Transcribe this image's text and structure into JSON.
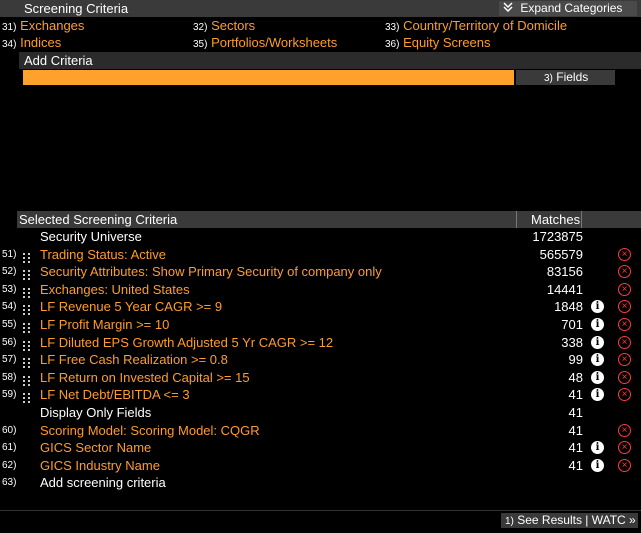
{
  "header": {
    "title": "Screening Criteria",
    "expand_label": "Expand Categories"
  },
  "categories": [
    {
      "num": "31)",
      "label": "Exchanges"
    },
    {
      "num": "32)",
      "label": "Sectors"
    },
    {
      "num": "33)",
      "label": "Country/Territory of Domicile"
    },
    {
      "num": "34)",
      "label": "Indices"
    },
    {
      "num": "35)",
      "label": "Portfolios/Worksheets"
    },
    {
      "num": "36)",
      "label": "Equity Screens"
    }
  ],
  "add_criteria": {
    "title": "Add Criteria",
    "input_value": "",
    "fields_num": "3)",
    "fields_label": "Fields"
  },
  "selected": {
    "title": "Selected Screening Criteria",
    "matches_header": "Matches",
    "rows": [
      {
        "num": "",
        "label": "Security Universe",
        "count": "1723875",
        "style": "white",
        "grip": false,
        "info": false,
        "del": false
      },
      {
        "num": "51)",
        "label": "Trading Status: Active",
        "count": "565579",
        "style": "orange",
        "grip": true,
        "info": false,
        "del": true
      },
      {
        "num": "52)",
        "label": "Security Attributes: Show Primary Security of company only",
        "count": "83156",
        "style": "orange",
        "grip": true,
        "info": false,
        "del": true
      },
      {
        "num": "53)",
        "label": "Exchanges: United States",
        "count": "14441",
        "style": "orange",
        "grip": true,
        "info": false,
        "del": true
      },
      {
        "num": "54)",
        "label": "LF Revenue 5 Year CAGR >= 9",
        "count": "1848",
        "style": "orange",
        "grip": true,
        "info": true,
        "del": true
      },
      {
        "num": "55)",
        "label": "LF Profit Margin >= 10",
        "count": "701",
        "style": "orange",
        "grip": true,
        "info": true,
        "del": true
      },
      {
        "num": "56)",
        "label": "LF Diluted EPS Growth Adjusted 5 Yr CAGR >= 12",
        "count": "338",
        "style": "orange",
        "grip": true,
        "info": true,
        "del": true
      },
      {
        "num": "57)",
        "label": "LF Free Cash Realization >= 0.8",
        "count": "99",
        "style": "orange",
        "grip": true,
        "info": true,
        "del": true
      },
      {
        "num": "58)",
        "label": "LF Return on Invested Capital >= 15",
        "count": "48",
        "style": "orange",
        "grip": true,
        "info": true,
        "del": true
      },
      {
        "num": "59)",
        "label": "LF Net Debt/EBITDA <= 3",
        "count": "41",
        "style": "orange",
        "grip": true,
        "info": true,
        "del": true
      },
      {
        "num": "",
        "label": "Display Only Fields",
        "count": "41",
        "style": "white",
        "grip": false,
        "info": false,
        "del": false
      },
      {
        "num": "60)",
        "label": "Scoring Model: Scoring Model: CQGR",
        "count": "41",
        "style": "orange",
        "grip": false,
        "info": false,
        "del": true
      },
      {
        "num": "61)",
        "label": "GICS Sector Name",
        "count": "41",
        "style": "orange",
        "grip": false,
        "info": true,
        "del": true
      },
      {
        "num": "62)",
        "label": "GICS Industry Name",
        "count": "41",
        "style": "orange",
        "grip": false,
        "info": true,
        "del": true
      },
      {
        "num": "63)",
        "label": "Add screening criteria",
        "count": "",
        "style": "white",
        "grip": false,
        "info": false,
        "del": false
      }
    ]
  },
  "footer": {
    "results_num": "1)",
    "results_label": "See Results | WATC »"
  },
  "colors": {
    "accent_orange": "#ff9c2a",
    "input_orange": "#ffa12a",
    "delete_red": "#ff3b3b"
  }
}
